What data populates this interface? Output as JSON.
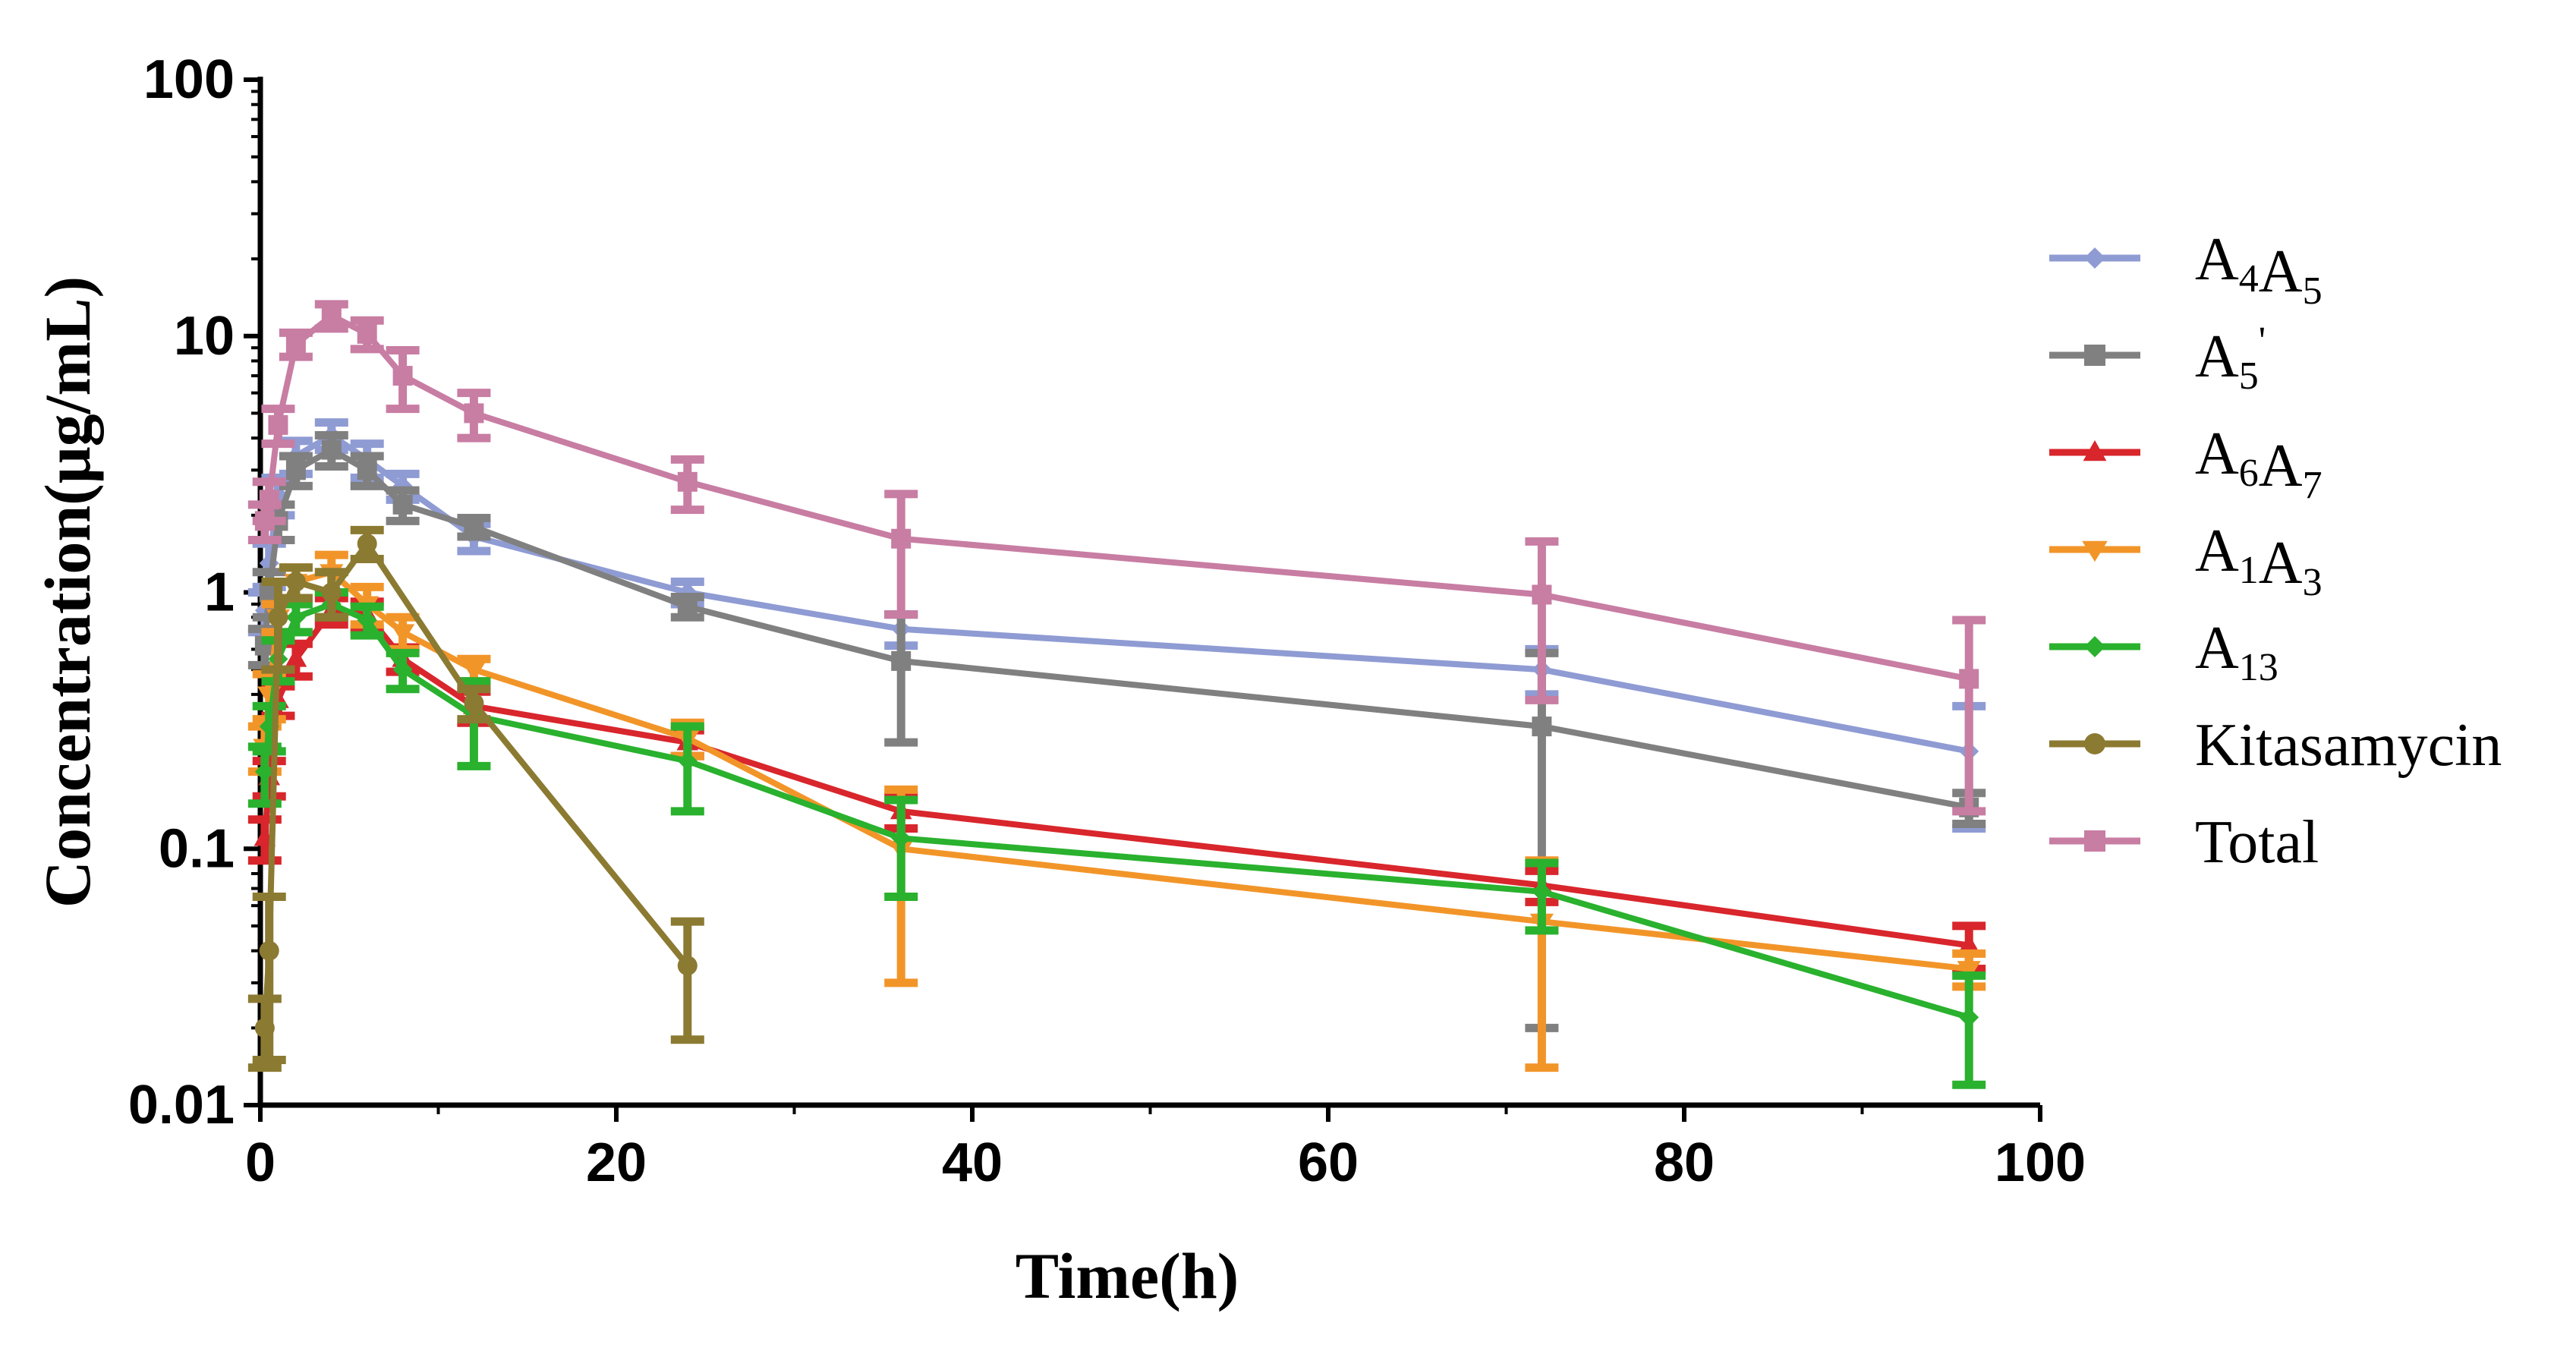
{
  "chart_data": {
    "type": "line",
    "title": "",
    "xlabel": "Time(h)",
    "ylabel": "Concentration(μg/mL)",
    "xlim": [
      0,
      100
    ],
    "ylim": [
      0.01,
      100
    ],
    "yscale": "log",
    "xticks": [
      0,
      20,
      40,
      60,
      80,
      100
    ],
    "xtick_labels": [
      "0",
      "20",
      "40",
      "60",
      "80",
      "100"
    ],
    "yticks": [
      0.01,
      0.1,
      1,
      10,
      100
    ],
    "ytick_labels": [
      "0.01",
      "0.1",
      "1",
      "10",
      "100"
    ],
    "legend_position": "right",
    "series": [
      {
        "name": "A4A5",
        "label_main": "A",
        "label_parts": [
          {
            "t": "A"
          },
          {
            "t": "4",
            "sub": true
          },
          {
            "t": "A"
          },
          {
            "t": "5",
            "sub": true
          }
        ],
        "color": "#8f9bd3",
        "marker": "diamond",
        "x": [
          0.25,
          0.5,
          1,
          2,
          4,
          6,
          8,
          12,
          24,
          36,
          72,
          96
        ],
        "y": [
          0.85,
          1.3,
          2.4,
          3.4,
          4.1,
          3.3,
          2.6,
          1.65,
          1.0,
          0.72,
          0.5,
          0.24
        ],
        "err": [
          0.15,
          0.25,
          0.4,
          0.5,
          0.5,
          0.5,
          0.3,
          0.2,
          0.1,
          0.1,
          0.1,
          0.12
        ]
      },
      {
        "name": "A5'",
        "label_parts": [
          {
            "t": "A"
          },
          {
            "t": "5",
            "sub": true
          },
          {
            "t": "'",
            "sup": true
          }
        ],
        "color": "#808080",
        "marker": "square",
        "x": [
          0.25,
          0.5,
          1,
          2,
          4,
          6,
          8,
          12,
          24,
          36,
          72,
          96
        ],
        "y": [
          0.62,
          1.0,
          1.9,
          3.0,
          3.6,
          3.0,
          2.2,
          1.8,
          0.88,
          0.54,
          0.3,
          0.145
        ],
        "err": [
          0.1,
          0.2,
          0.3,
          0.4,
          0.5,
          0.4,
          0.3,
          0.15,
          0.08,
          0.28,
          0.28,
          0.02
        ]
      },
      {
        "name": "A6A7",
        "label_parts": [
          {
            "t": "A"
          },
          {
            "t": "6",
            "sub": true
          },
          {
            "t": "A"
          },
          {
            "t": "7",
            "sub": true
          }
        ],
        "color": "#d8262c",
        "marker": "triangle-up",
        "x": [
          0.25,
          0.5,
          1,
          2,
          4,
          6,
          8,
          12,
          24,
          36,
          72,
          96
        ],
        "y": [
          0.11,
          0.19,
          0.38,
          0.55,
          0.85,
          0.82,
          0.55,
          0.36,
          0.26,
          0.14,
          0.072,
          0.042
        ],
        "err": [
          0.02,
          0.03,
          0.05,
          0.08,
          0.1,
          0.1,
          0.06,
          0.05,
          0.03,
          0.02,
          0.01,
          0.008
        ]
      },
      {
        "name": "A1A3",
        "label_parts": [
          {
            "t": "A"
          },
          {
            "t": "1",
            "sub": true
          },
          {
            "t": "A"
          },
          {
            "t": "3",
            "sub": true
          }
        ],
        "color": "#f29529",
        "marker": "triangle-down",
        "x": [
          0.25,
          0.5,
          1,
          2,
          4,
          6,
          8,
          12,
          24,
          36,
          72,
          96
        ],
        "y": [
          0.25,
          0.4,
          0.8,
          1.1,
          1.2,
          0.9,
          0.7,
          0.5,
          0.27,
          0.1,
          0.052,
          0.034
        ],
        "err": [
          0.05,
          0.08,
          0.1,
          0.15,
          0.2,
          0.15,
          0.1,
          0.05,
          0.04,
          0.07,
          0.038,
          0.005
        ]
      },
      {
        "name": "A13",
        "label_parts": [
          {
            "t": "A"
          },
          {
            "t": "13",
            "sub": true
          }
        ],
        "color": "#2ab12e",
        "marker": "diamond",
        "x": [
          0.25,
          0.5,
          1,
          2,
          4,
          6,
          8,
          12,
          24,
          36,
          72,
          96
        ],
        "y": [
          0.2,
          0.3,
          0.55,
          0.8,
          0.9,
          0.78,
          0.5,
          0.33,
          0.22,
          0.11,
          0.068,
          0.022
        ],
        "err": [
          0.05,
          0.06,
          0.1,
          0.1,
          0.1,
          0.1,
          0.08,
          0.12,
          0.08,
          0.045,
          0.02,
          0.01
        ]
      },
      {
        "name": "Kitasamycin",
        "label_parts": [
          {
            "t": "Kitasamycin"
          }
        ],
        "color": "#8b7a31",
        "marker": "circle",
        "x": [
          0.25,
          0.5,
          1,
          2,
          4,
          6,
          12,
          24
        ],
        "y": [
          0.02,
          0.04,
          0.8,
          1.1,
          1.0,
          1.55,
          0.37,
          0.035
        ],
        "err": [
          0.006,
          0.025,
          0.3,
          0.15,
          0.2,
          0.2,
          0.05,
          0.017
        ]
      },
      {
        "name": "Total",
        "label_parts": [
          {
            "t": "Total"
          }
        ],
        "color": "#c87da3",
        "marker": "square",
        "x": [
          0.25,
          0.5,
          1,
          2,
          4,
          6,
          8,
          12,
          24,
          36,
          72,
          96
        ],
        "y": [
          1.9,
          2.3,
          4.5,
          9.3,
          12.0,
          10.2,
          7.0,
          5.0,
          2.7,
          1.62,
          0.98,
          0.46
        ],
        "err": [
          0.3,
          0.4,
          0.7,
          1.0,
          1.3,
          1.3,
          1.8,
          1.0,
          0.6,
          0.8,
          0.6,
          0.32
        ]
      }
    ]
  }
}
